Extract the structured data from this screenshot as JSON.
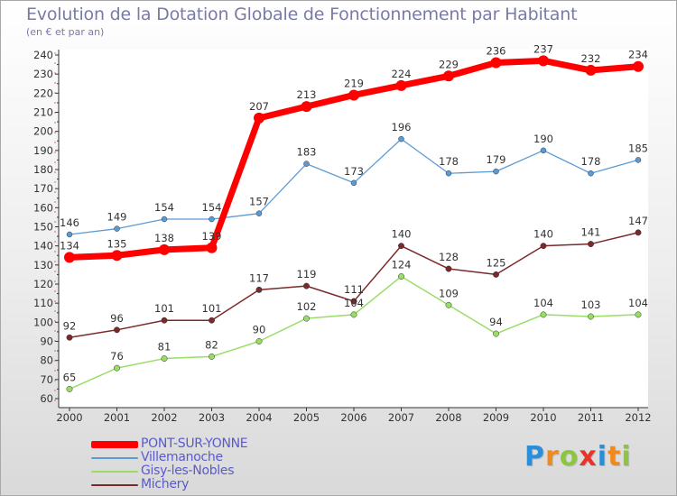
{
  "title": "Evolution de la Dotation Globale de Fonctionnement par Habitant",
  "subtitle": "(en € et par an)",
  "logo": {
    "letters": [
      "P",
      "r",
      "o",
      "x",
      "i",
      "t",
      "i"
    ],
    "colors": [
      "#2a8fd8",
      "#f08a1c",
      "#8cc63f",
      "#e8332a",
      "#2a8fd8",
      "#f08a1c",
      "#8cc63f"
    ]
  },
  "chart_data": {
    "type": "line",
    "x": [
      "2000",
      "2001",
      "2002",
      "2003",
      "2004",
      "2005",
      "2006",
      "2007",
      "2008",
      "2009",
      "2010",
      "2011",
      "2012"
    ],
    "ylim": [
      60,
      240
    ],
    "yticks": [
      60,
      70,
      80,
      90,
      100,
      110,
      120,
      130,
      140,
      150,
      160,
      170,
      180,
      190,
      200,
      210,
      220,
      230,
      240
    ],
    "grid": false,
    "legend_position": "bottom-left",
    "series": [
      {
        "name": "PONT-SUR-YONNE",
        "color": "#ff0000",
        "values": [
          134,
          135,
          138,
          139,
          207,
          213,
          219,
          224,
          229,
          236,
          237,
          232,
          234
        ]
      },
      {
        "name": "Villemanoche",
        "color": "#5b9bd5",
        "values": [
          146,
          149,
          154,
          154,
          157,
          183,
          173,
          196,
          178,
          179,
          190,
          178,
          185
        ]
      },
      {
        "name": "Gisy-les-Nobles",
        "color": "#99dd66",
        "values": [
          65,
          76,
          81,
          82,
          90,
          102,
          104,
          124,
          109,
          94,
          104,
          103,
          104
        ]
      },
      {
        "name": "Michery",
        "color": "#7a2a2a",
        "values": [
          92,
          96,
          101,
          101,
          117,
          119,
          111,
          140,
          128,
          125,
          140,
          141,
          147
        ]
      }
    ]
  }
}
